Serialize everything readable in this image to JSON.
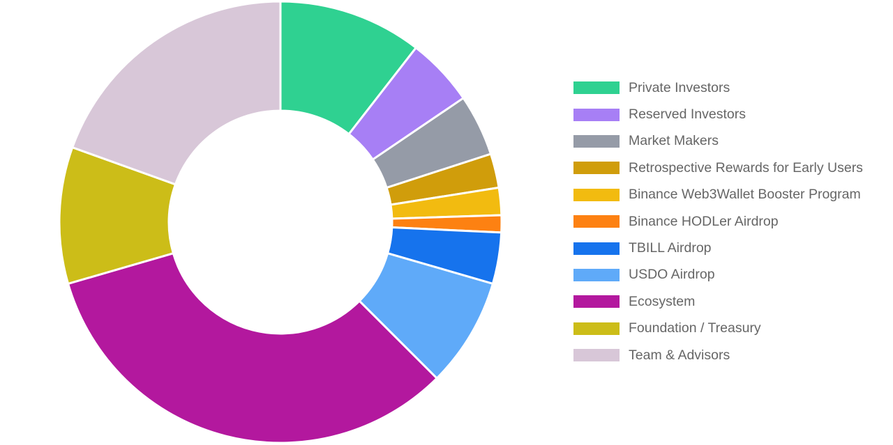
{
  "chart_data": {
    "type": "pie",
    "variant": "donut",
    "legend_position": "right",
    "slices": [
      {
        "label": "Private Investors",
        "value": 10.5,
        "color": "#2fd191"
      },
      {
        "label": "Reserved Investors",
        "value": 5.0,
        "color": "#a77ff5"
      },
      {
        "label": "Market Makers",
        "value": 4.5,
        "color": "#959ba7"
      },
      {
        "label": "Retrospective Rewards for Early Users",
        "value": 2.5,
        "color": "#d09d0b"
      },
      {
        "label": "Binance Web3Wallet Booster Program",
        "value": 2.0,
        "color": "#f2bb10"
      },
      {
        "label": "Binance HODLer Airdrop",
        "value": 1.25,
        "color": "#fd8112"
      },
      {
        "label": "TBILL Airdrop",
        "value": 3.75,
        "color": "#1673ed"
      },
      {
        "label": "USDO Airdrop",
        "value": 8.0,
        "color": "#5faaf9"
      },
      {
        "label": "Ecosystem",
        "value": 33.0,
        "color": "#b3189e"
      },
      {
        "label": "Foundation / Treasury",
        "value": 10.0,
        "color": "#ccbd18"
      },
      {
        "label": "Team & Advisors",
        "value": 19.5,
        "color": "#d8c7d8"
      }
    ]
  }
}
